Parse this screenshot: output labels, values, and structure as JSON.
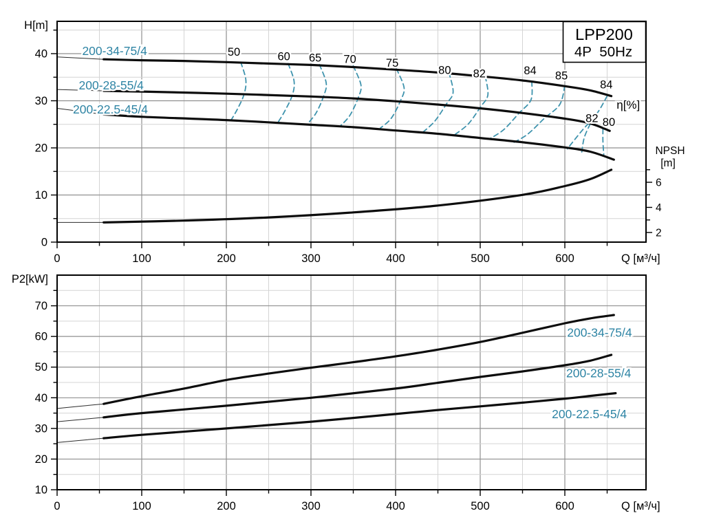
{
  "title_box": {
    "model": "LPP200",
    "spec": "4P  50Hz"
  },
  "colors": {
    "curve_black": "#0d0d0d",
    "thin_lead_line": "#2a2a2a",
    "teal_label": "#2e84a4",
    "contour_dash": "#3e93ad",
    "grid_minor": "#d4d4d4",
    "grid_major": "#8f8f8f",
    "axis_black": "#000000"
  },
  "chart_data": [
    {
      "type": "line",
      "name": "head-npsh-chart",
      "ylabel": "H[m]",
      "xlabel": "Q [м³/ч]",
      "xlim": [
        0,
        696
      ],
      "ylim": [
        0,
        46.9
      ],
      "grid": "on",
      "x_major_ticks": [
        0,
        100,
        200,
        300,
        400,
        500,
        600
      ],
      "x_minor_step": 50,
      "y_major_ticks": [
        0,
        10,
        20,
        30,
        40
      ],
      "y_minor_step": 5,
      "series": [
        {
          "name": "200-34-75/4",
          "label_pos": [
            68,
            40.6
          ],
          "points": [
            [
              0,
              39.3
            ],
            [
              55,
              38.8
            ],
            [
              100,
              38.6
            ],
            [
              150,
              38.45
            ],
            [
              200,
              38.2
            ],
            [
              250,
              37.9
            ],
            [
              300,
              37.6
            ],
            [
              350,
              37.15
            ],
            [
              400,
              36.6
            ],
            [
              450,
              36.0
            ],
            [
              500,
              35.2
            ],
            [
              550,
              34.3
            ],
            [
              600,
              33.1
            ],
            [
              630,
              32.2
            ],
            [
              655,
              31.0
            ]
          ]
        },
        {
          "name": "200-28-55/4",
          "label_pos": [
            64,
            33.3
          ],
          "points": [
            [
              0,
              32.4
            ],
            [
              55,
              32.1
            ],
            [
              100,
              31.95
            ],
            [
              200,
              31.5
            ],
            [
              300,
              30.9
            ],
            [
              350,
              30.5
            ],
            [
              400,
              29.9
            ],
            [
              450,
              29.2
            ],
            [
              500,
              28.4
            ],
            [
              550,
              27.4
            ],
            [
              600,
              26.2
            ],
            [
              630,
              25.2
            ],
            [
              653,
              23.6
            ]
          ]
        },
        {
          "name": "200-22.5-45/4",
          "label_pos": [
            63,
            28.2
          ],
          "points": [
            [
              0,
              28.4
            ],
            [
              55,
              27.1
            ],
            [
              100,
              26.6
            ],
            [
              200,
              25.9
            ],
            [
              300,
              24.9
            ],
            [
              350,
              24.4
            ],
            [
              400,
              23.7
            ],
            [
              450,
              23.0
            ],
            [
              500,
              22.1
            ],
            [
              550,
              21.2
            ],
            [
              600,
              20.1
            ],
            [
              630,
              19.2
            ],
            [
              658,
              17.5
            ]
          ]
        }
      ],
      "efficiency_contours": {
        "unit_label": "η[%]",
        "unit_label_pos": [
          675,
          29.1
        ],
        "contours": [
          {
            "label": "50",
            "label_pos": [
              209,
              40.4
            ],
            "points": [
              [
                217,
                38.2
              ],
              [
                223,
                34.5
              ],
              [
                221,
                31.4
              ],
              [
                213,
                28.2
              ],
              [
                205,
                25.7
              ]
            ]
          },
          {
            "label": "60",
            "label_pos": [
              268,
              39.4
            ],
            "points": [
              [
                273,
                37.9
              ],
              [
                280,
                34.2
              ],
              [
                278,
                31.2
              ],
              [
                269,
                27.8
              ],
              [
                261,
                25.4
              ]
            ]
          },
          {
            "label": "65",
            "label_pos": [
              305,
              39.1
            ],
            "points": [
              [
                310,
                37.7
              ],
              [
                318,
                33.8
              ],
              [
                315,
                31.0
              ],
              [
                306,
                27.4
              ],
              [
                296,
                25.1
              ]
            ]
          },
          {
            "label": "70",
            "label_pos": [
              346,
              38.8
            ],
            "points": [
              [
                350,
                37.4
              ],
              [
                359,
                33.4
              ],
              [
                356,
                30.7
              ],
              [
                346,
                26.9
              ],
              [
                335,
                24.7
              ]
            ]
          },
          {
            "label": "75",
            "label_pos": [
              396,
              38.0
            ],
            "points": [
              [
                401,
                36.8
              ],
              [
                410,
                32.8
              ],
              [
                406,
                30.1
              ],
              [
                395,
                26.3
              ],
              [
                382,
                24.2
              ]
            ]
          },
          {
            "label": "80",
            "label_pos": [
              458,
              36.5
            ],
            "points": [
              [
                463,
                36.0
              ],
              [
                468,
                31.8
              ],
              [
                460,
                29.3
              ],
              [
                446,
                25.6
              ],
              [
                432,
                23.3
              ]
            ]
          },
          {
            "label": "82",
            "label_pos": [
              499,
              35.8
            ],
            "points": [
              [
                506,
                35.2
              ],
              [
                509,
                31.2
              ],
              [
                500,
                28.6
              ],
              [
                486,
                25.1
              ],
              [
                470,
                22.8
              ]
            ]
          },
          {
            "label": "84",
            "label_pos": [
              559,
              36.4
            ],
            "points": [
              [
                561,
                34.1
              ],
              [
                560,
                30.2
              ],
              [
                546,
                27.4
              ],
              [
                528,
                23.9
              ],
              [
                511,
                21.9
              ]
            ]
          },
          {
            "label": "85",
            "label_pos": [
              596,
              35.3
            ],
            "points": [
              [
                600,
                33.2
              ],
              [
                594,
                29.2
              ],
              [
                576,
                26.3
              ],
              [
                556,
                22.9
              ],
              [
                538,
                21.0
              ]
            ]
          },
          {
            "label": "84",
            "label_pos": [
              649,
              33.4
            ],
            "points": [
              [
                650,
                31.0
              ],
              [
                638,
                27.3
              ],
              [
                620,
                23.6
              ],
              [
                603,
                19.8
              ]
            ]
          },
          {
            "label": "82",
            "label_pos": [
              632,
              26.3
            ],
            "points": [
              [
                630,
                25.1
              ],
              [
                623,
                22.2
              ],
              [
                620,
                19.1
              ]
            ]
          },
          {
            "label": "80",
            "label_pos": [
              652,
              25.5
            ],
            "points": [
              [
                645,
                24.0
              ],
              [
                645,
                21.3
              ],
              [
                646,
                18.6
              ]
            ]
          }
        ]
      },
      "npsh": {
        "axis_label_line1": "NPSH",
        "axis_label_line2": "[m]",
        "tick_values": [
          2,
          3,
          4,
          5,
          6,
          7
        ],
        "labeled_ticks": [
          2,
          4,
          6
        ],
        "points": [
          [
            0,
            2.8
          ],
          [
            55,
            2.8
          ],
          [
            150,
            2.95
          ],
          [
            250,
            3.2
          ],
          [
            350,
            3.6
          ],
          [
            450,
            4.15
          ],
          [
            550,
            5.0
          ],
          [
            600,
            5.7
          ],
          [
            630,
            6.25
          ],
          [
            655,
            7.0
          ]
        ]
      }
    },
    {
      "type": "line",
      "name": "power-chart",
      "ylabel": "P2[kW]",
      "xlabel": "Q [м³/ч]",
      "xlim": [
        0,
        696
      ],
      "ylim": [
        10,
        80
      ],
      "grid": "on",
      "x_major_ticks": [
        0,
        100,
        200,
        300,
        400,
        500,
        600
      ],
      "x_minor_step": 50,
      "y_major_ticks": [
        10,
        20,
        30,
        40,
        50,
        60,
        70
      ],
      "y_minor_step": 5,
      "series": [
        {
          "name": "200-34-75/4",
          "label_pos": [
            641,
            61.3
          ],
          "points": [
            [
              0,
              36.5
            ],
            [
              55,
              38.0
            ],
            [
              100,
              40.5
            ],
            [
              150,
              43.0
            ],
            [
              200,
              45.8
            ],
            [
              250,
              47.9
            ],
            [
              300,
              49.8
            ],
            [
              350,
              51.6
            ],
            [
              400,
              53.5
            ],
            [
              450,
              55.7
            ],
            [
              500,
              58.2
            ],
            [
              550,
              61.2
            ],
            [
              600,
              64.3
            ],
            [
              630,
              65.9
            ],
            [
              658,
              67.0
            ]
          ]
        },
        {
          "name": "200-28-55/4",
          "label_pos": [
            640,
            48.0
          ],
          "points": [
            [
              0,
              32.2
            ],
            [
              55,
              33.6
            ],
            [
              100,
              35.0
            ],
            [
              200,
              37.4
            ],
            [
              300,
              40.0
            ],
            [
              400,
              43.0
            ],
            [
              450,
              44.9
            ],
            [
              500,
              46.8
            ],
            [
              550,
              48.6
            ],
            [
              600,
              50.6
            ],
            [
              630,
              52.1
            ],
            [
              655,
              54.0
            ]
          ]
        },
        {
          "name": "200-22.5-45/4",
          "label_pos": [
            629,
            34.7
          ],
          "points": [
            [
              0,
              25.4
            ],
            [
              55,
              26.8
            ],
            [
              100,
              27.9
            ],
            [
              200,
              30.0
            ],
            [
              300,
              32.2
            ],
            [
              400,
              34.7
            ],
            [
              450,
              36.0
            ],
            [
              500,
              37.2
            ],
            [
              550,
              38.4
            ],
            [
              600,
              39.7
            ],
            [
              630,
              40.6
            ],
            [
              660,
              41.5
            ]
          ]
        }
      ]
    }
  ]
}
